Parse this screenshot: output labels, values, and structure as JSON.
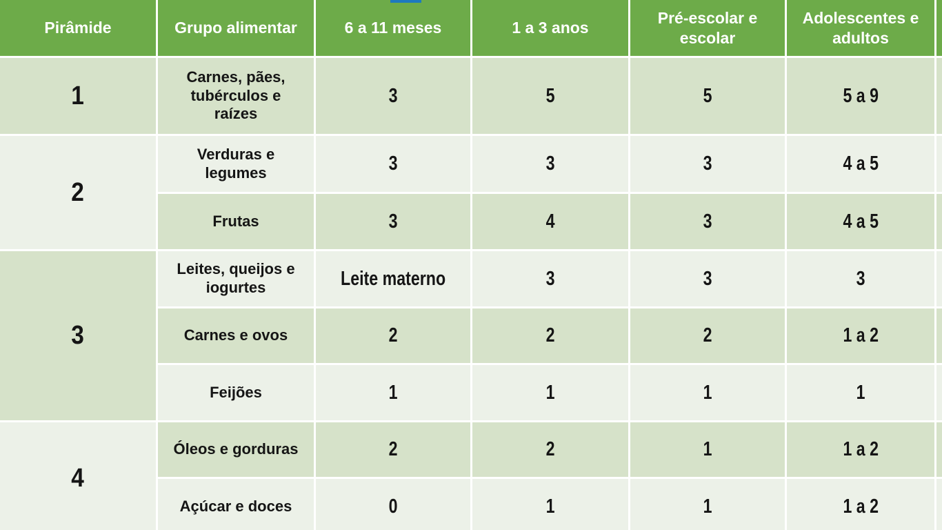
{
  "colors": {
    "header_green": "#6dab49",
    "band_dark": "#d6e2c9",
    "band_light": "#ecf1e8",
    "gap_white": "#ffffff",
    "text_dark": "#151515",
    "header_text": "#ffffff",
    "top_bar_blue": "#1d79bf"
  },
  "table": {
    "headers": [
      "Pirâmide",
      "Grupo alimentar",
      "6 a 11 meses",
      "1 a 3 anos",
      "Pré-escolar e escolar",
      "Adolescentes e adultos"
    ],
    "groups": [
      {
        "pyramid": "1",
        "rows": [
          {
            "group": "Carnes, pães, tubérculos e raízes",
            "values": [
              "3",
              "5",
              "5",
              "5 a 9"
            ]
          }
        ]
      },
      {
        "pyramid": "2",
        "rows": [
          {
            "group": "Verduras e legumes",
            "values": [
              "3",
              "3",
              "3",
              "4 a 5"
            ]
          },
          {
            "group": "Frutas",
            "values": [
              "3",
              "4",
              "3",
              "4 a 5"
            ]
          }
        ]
      },
      {
        "pyramid": "3",
        "rows": [
          {
            "group": "Leites, queijos e iogurtes",
            "values": [
              "Leite materno",
              "3",
              "3",
              "3"
            ]
          },
          {
            "group": "Carnes e ovos",
            "values": [
              "2",
              "2",
              "2",
              "1 a 2"
            ]
          },
          {
            "group": "Feijões",
            "values": [
              "1",
              "1",
              "1",
              "1"
            ]
          }
        ]
      },
      {
        "pyramid": "4",
        "rows": [
          {
            "group": "Óleos e gorduras",
            "values": [
              "2",
              "2",
              "1",
              "1 a 2"
            ]
          },
          {
            "group": "Açúcar e doces",
            "values": [
              "0",
              "1",
              "1",
              "1 a 2"
            ]
          }
        ]
      }
    ]
  }
}
